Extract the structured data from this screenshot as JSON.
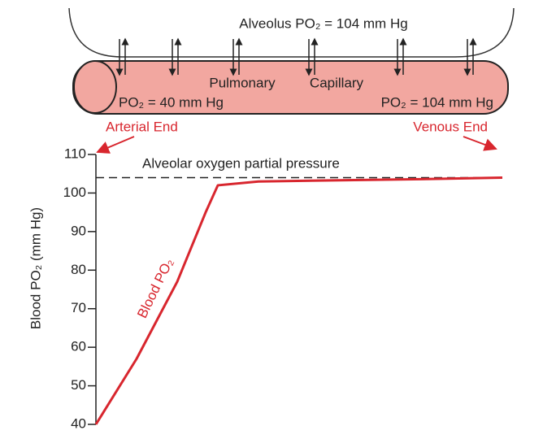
{
  "diagram": {
    "alveolus_label": "Alveolus PO₂ = 104 mm Hg",
    "capillary_labels": [
      "Pulmonary",
      "Capillary"
    ],
    "arterial_po2": "PO₂ = 40 mm Hg",
    "venous_po2": "PO₂ = 104 mm Hg",
    "arterial_end": "Arterial End",
    "venous_end": "Venous End"
  },
  "chart_data": {
    "type": "line",
    "ylabel": "Blood PO₂ (mm Hg)",
    "x": [
      0,
      0.1,
      0.2,
      0.27,
      0.3,
      0.4,
      0.6,
      0.8,
      1.0
    ],
    "xlim": [
      0,
      1
    ],
    "series": [
      {
        "name": "Blood PO₂",
        "color": "#d8262e",
        "values": [
          40,
          57,
          77,
          95,
          102,
          103,
          103.3,
          103.6,
          104
        ]
      }
    ],
    "reference": {
      "label": "Alveolar oxygen partial pressure",
      "value": 104
    },
    "ylim": [
      40,
      110
    ],
    "yticks": [
      40,
      50,
      60,
      70,
      80,
      90,
      100,
      110
    ]
  }
}
